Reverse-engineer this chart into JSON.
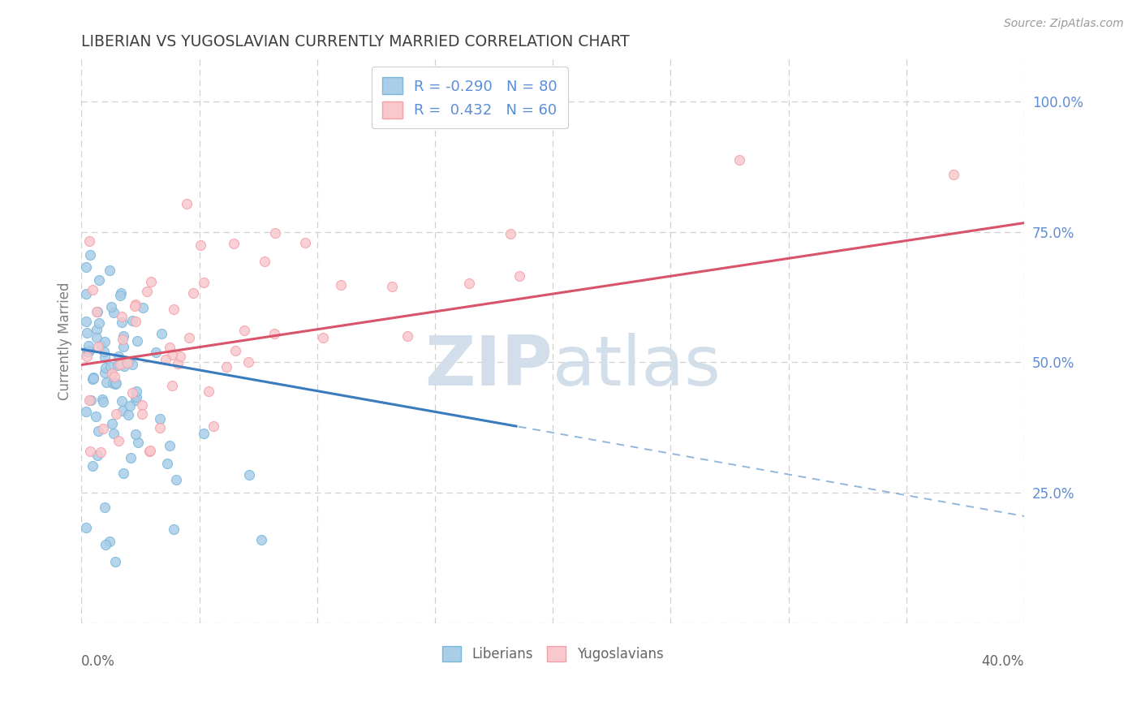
{
  "title": "LIBERIAN VS YUGOSLAVIAN CURRENTLY MARRIED CORRELATION CHART",
  "source_text": "Source: ZipAtlas.com",
  "ylabel": "Currently Married",
  "y_ticks": [
    0.0,
    0.25,
    0.5,
    0.75,
    1.0
  ],
  "y_tick_labels": [
    "",
    "25.0%",
    "50.0%",
    "75.0%",
    "100.0%"
  ],
  "x_range": [
    0.0,
    0.4
  ],
  "y_range": [
    0.0,
    1.08
  ],
  "liberian_R": -0.29,
  "liberian_N": 80,
  "yugoslavian_R": 0.432,
  "yugoslavian_N": 60,
  "blue_color": "#7ab8d9",
  "blue_fill": "#aacde8",
  "pink_color": "#f4a0aa",
  "pink_fill": "#f9c8cc",
  "blue_line_color": "#3a7abf",
  "pink_line_color": "#d9536a",
  "watermark_text": "ZIPatlas",
  "watermark_color": "#d0dde8",
  "background_color": "#ffffff",
  "grid_color": "#d0d0d0",
  "tick_label_color": "#5b8dd9",
  "title_color": "#404040",
  "ylabel_color": "#808080",
  "source_color": "#999999",
  "legend_label_color": "#5b8dd9",
  "bottom_legend_color": "#666666",
  "seed": 123
}
